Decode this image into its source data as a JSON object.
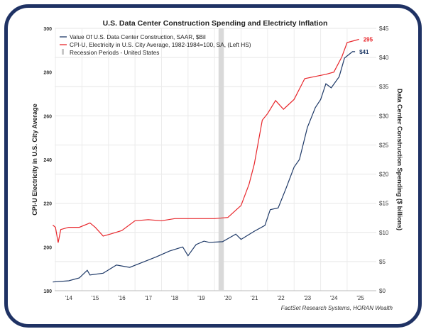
{
  "chart_data": {
    "type": "line",
    "title": "U.S. Data Center Construction Spending and Electricty Inflation",
    "source": "FactSet Research Systems, HORAN Wealth",
    "ylabel_left": "CPI-U Electricity in U.S. City Average",
    "ylabel_right": "Data Center Construction Spending ($ billions)",
    "ylim_left": [
      180,
      300
    ],
    "ylim_right": [
      0,
      45
    ],
    "yticks_left": [
      "180",
      "200",
      "220",
      "240",
      "260",
      "280",
      "300"
    ],
    "yticks_right": [
      "$0",
      "$5",
      "$10",
      "$15",
      "$20",
      "$25",
      "$30",
      "$35",
      "$40",
      "$45"
    ],
    "xticks": [
      "'14",
      "'15",
      "'16",
      "'17",
      "'18",
      "'19",
      "'20",
      "'21",
      "'22",
      "'23",
      "'24",
      "'25"
    ],
    "grid": true,
    "legend_placement": "top-left",
    "legend": [
      {
        "label": "Value Of U.S. Data Center Construction, SAAR, $Bil",
        "color": "#1f3a68"
      },
      {
        "label": "CPI-U, Electricity in U.S. City Average, 1982-1984=100, SA, (Left HS)",
        "color": "#e8262b"
      },
      {
        "label": "Recession Periods - United States",
        "color": "#d0d0d0"
      }
    ],
    "recession": [
      [
        2020.15,
        2020.35
      ]
    ],
    "series": [
      {
        "name": "CPI-U, Electricity in U.S. City Average, 1982-1984=100, SA, (Left HS)",
        "axis": "left",
        "color": "#e8262b",
        "end_label": "295",
        "x": [
          2013.9,
          2014.0,
          2014.1,
          2014.2,
          2014.5,
          2014.9,
          2015.3,
          2015.5,
          2015.8,
          2016.1,
          2016.5,
          2017.0,
          2017.5,
          2018.0,
          2018.5,
          2019.0,
          2019.5,
          2020.0,
          2020.5,
          2021.0,
          2021.3,
          2021.5,
          2021.8,
          2022.0,
          2022.3,
          2022.6,
          2023.0,
          2023.4,
          2023.8,
          2024.2,
          2024.5,
          2024.8,
          2025.0,
          2025.3,
          2025.45
        ],
        "y": [
          210,
          209,
          202,
          208,
          209,
          209,
          211,
          209,
          205,
          206,
          207.5,
          212,
          212.5,
          212,
          213,
          213,
          213,
          213,
          213.5,
          219,
          228.6,
          238,
          258,
          261,
          267,
          263,
          267.5,
          277,
          278,
          279,
          280,
          287,
          293.5,
          294.5,
          295
        ]
      },
      {
        "name": "Value Of U.S. Data Center Construction, SAAR, $Bil",
        "axis": "right",
        "color": "#1f3a68",
        "end_label": "$41",
        "x": [
          2013.9,
          2014.5,
          2014.9,
          2015.2,
          2015.3,
          2015.8,
          2016.3,
          2016.8,
          2017.3,
          2017.8,
          2018.3,
          2018.8,
          2019.0,
          2019.3,
          2019.6,
          2019.8,
          2020.3,
          2020.8,
          2021.0,
          2021.5,
          2021.9,
          2022.1,
          2022.4,
          2022.7,
          2023.0,
          2023.2,
          2023.5,
          2023.8,
          2024.0,
          2024.2,
          2024.4,
          2024.7,
          2024.9,
          2025.2,
          2025.3
        ],
        "y": [
          1.5,
          1.7,
          2.2,
          3.5,
          2.7,
          3,
          4.4,
          4,
          4.9,
          5.8,
          6.8,
          7.5,
          6,
          7.9,
          8.5,
          8.3,
          8.4,
          9.7,
          8.8,
          10.2,
          11.2,
          13.9,
          14.2,
          17.6,
          21.2,
          22.5,
          28,
          31.4,
          32.8,
          35.5,
          34.8,
          36.7,
          39.9,
          41,
          41
        ]
      }
    ]
  }
}
